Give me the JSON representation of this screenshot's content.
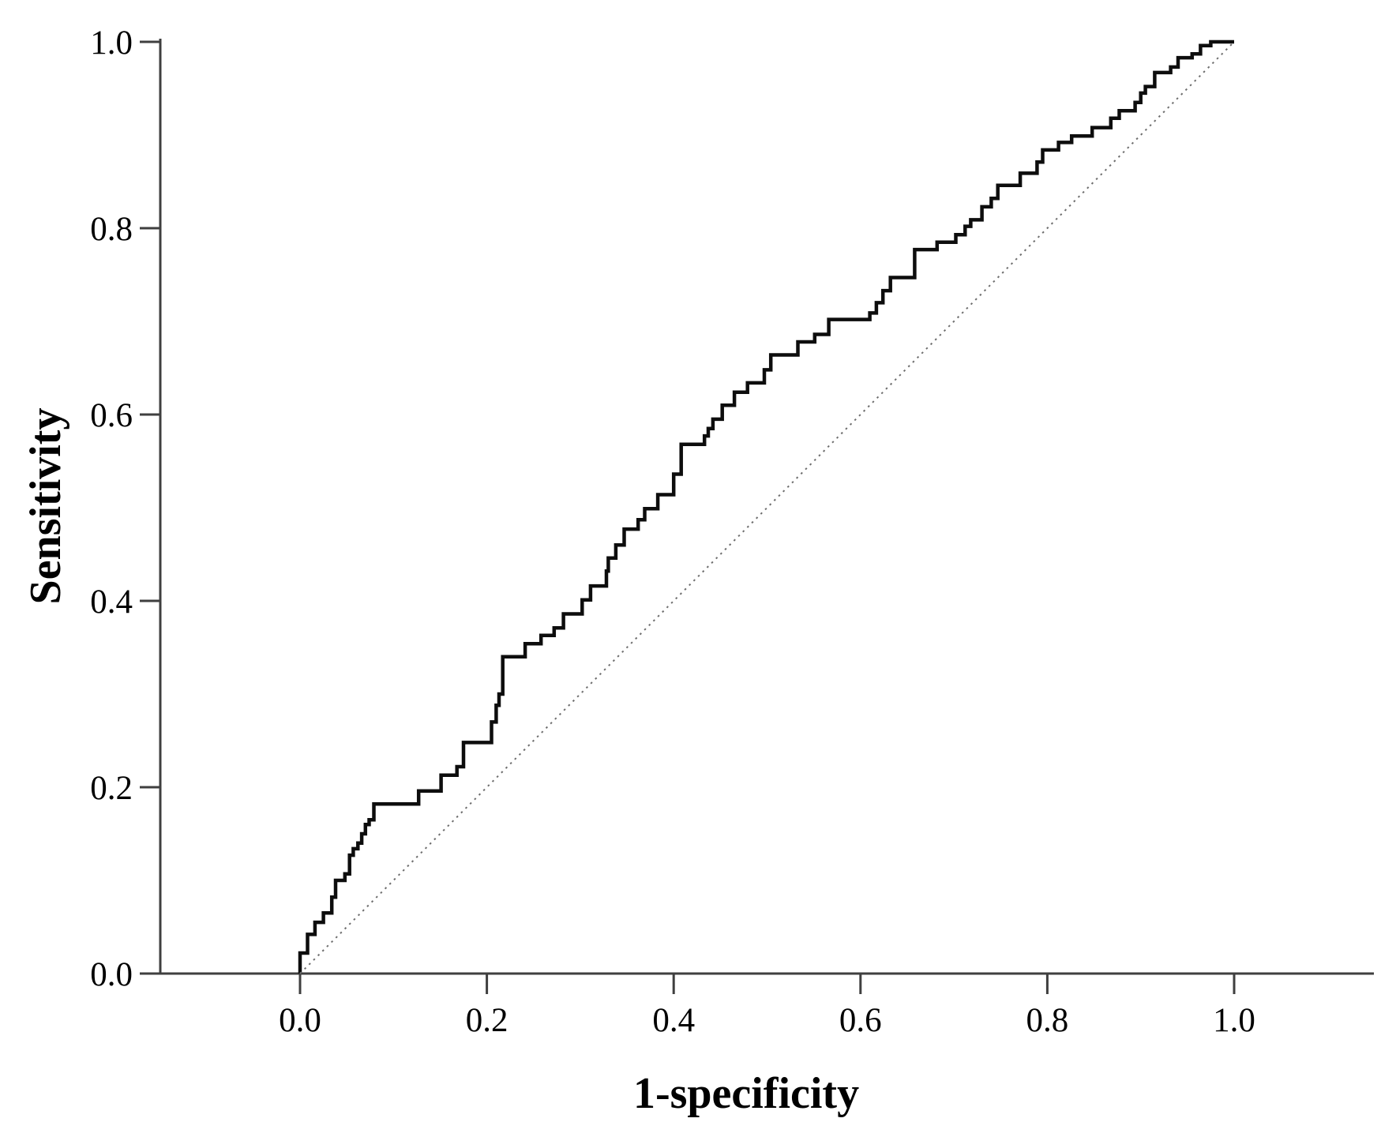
{
  "page": {
    "background": "#ffffff"
  },
  "chart_data": {
    "type": "line",
    "subtype": "roc_step_curve",
    "title": "",
    "xlabel": "1-specificity",
    "ylabel": "Sensitivity",
    "xlim": [
      0.0,
      1.0
    ],
    "ylim": [
      0.0,
      1.0
    ],
    "grid": false,
    "legend_position": "none",
    "x_ticks": [
      {
        "value": 0.0,
        "label": "0.0"
      },
      {
        "value": 0.2,
        "label": "0.2"
      },
      {
        "value": 0.4,
        "label": "0.4"
      },
      {
        "value": 0.6,
        "label": "0.6"
      },
      {
        "value": 0.8,
        "label": "0.8"
      },
      {
        "value": 1.0,
        "label": "1.0"
      }
    ],
    "y_ticks": [
      {
        "value": 0.0,
        "label": "0.0"
      },
      {
        "value": 0.2,
        "label": "0.2"
      },
      {
        "value": 0.4,
        "label": "0.4"
      },
      {
        "value": 0.6,
        "label": "0.6"
      },
      {
        "value": 0.8,
        "label": "0.8"
      },
      {
        "value": 1.0,
        "label": "1.0"
      }
    ],
    "colors": {
      "curve": "#0d0d0d",
      "reference": "#6e6e6e",
      "axis": "#3f3f3f",
      "text": "#000000"
    },
    "series": [
      {
        "name": "ROC curve",
        "style": "solid-step",
        "points": [
          [
            0.0,
            0.0
          ],
          [
            0.0,
            0.022
          ],
          [
            0.008,
            0.022
          ],
          [
            0.008,
            0.042
          ],
          [
            0.016,
            0.042
          ],
          [
            0.016,
            0.055
          ],
          [
            0.025,
            0.055
          ],
          [
            0.025,
            0.065
          ],
          [
            0.034,
            0.065
          ],
          [
            0.034,
            0.082
          ],
          [
            0.038,
            0.082
          ],
          [
            0.038,
            0.1
          ],
          [
            0.048,
            0.1
          ],
          [
            0.048,
            0.107
          ],
          [
            0.053,
            0.107
          ],
          [
            0.053,
            0.127
          ],
          [
            0.057,
            0.127
          ],
          [
            0.057,
            0.134
          ],
          [
            0.062,
            0.134
          ],
          [
            0.062,
            0.14
          ],
          [
            0.066,
            0.14
          ],
          [
            0.066,
            0.15
          ],
          [
            0.07,
            0.15
          ],
          [
            0.07,
            0.16
          ],
          [
            0.074,
            0.16
          ],
          [
            0.074,
            0.165
          ],
          [
            0.079,
            0.165
          ],
          [
            0.079,
            0.182
          ],
          [
            0.085,
            0.182
          ],
          [
            0.127,
            0.182
          ],
          [
            0.127,
            0.196
          ],
          [
            0.151,
            0.196
          ],
          [
            0.151,
            0.213
          ],
          [
            0.168,
            0.213
          ],
          [
            0.168,
            0.222
          ],
          [
            0.175,
            0.222
          ],
          [
            0.175,
            0.248
          ],
          [
            0.205,
            0.248
          ],
          [
            0.205,
            0.27
          ],
          [
            0.21,
            0.27
          ],
          [
            0.21,
            0.288
          ],
          [
            0.213,
            0.288
          ],
          [
            0.213,
            0.3
          ],
          [
            0.217,
            0.3
          ],
          [
            0.217,
            0.34
          ],
          [
            0.241,
            0.34
          ],
          [
            0.241,
            0.354
          ],
          [
            0.258,
            0.354
          ],
          [
            0.258,
            0.363
          ],
          [
            0.272,
            0.363
          ],
          [
            0.272,
            0.371
          ],
          [
            0.282,
            0.371
          ],
          [
            0.282,
            0.386
          ],
          [
            0.302,
            0.386
          ],
          [
            0.302,
            0.401
          ],
          [
            0.311,
            0.401
          ],
          [
            0.311,
            0.416
          ],
          [
            0.328,
            0.416
          ],
          [
            0.328,
            0.432
          ],
          [
            0.33,
            0.432
          ],
          [
            0.33,
            0.446
          ],
          [
            0.338,
            0.446
          ],
          [
            0.338,
            0.46
          ],
          [
            0.347,
            0.46
          ],
          [
            0.347,
            0.477
          ],
          [
            0.362,
            0.477
          ],
          [
            0.362,
            0.487
          ],
          [
            0.369,
            0.487
          ],
          [
            0.369,
            0.499
          ],
          [
            0.383,
            0.499
          ],
          [
            0.383,
            0.514
          ],
          [
            0.4,
            0.514
          ],
          [
            0.4,
            0.536
          ],
          [
            0.408,
            0.536
          ],
          [
            0.408,
            0.568
          ],
          [
            0.433,
            0.568
          ],
          [
            0.433,
            0.577
          ],
          [
            0.437,
            0.577
          ],
          [
            0.437,
            0.585
          ],
          [
            0.442,
            0.585
          ],
          [
            0.442,
            0.595
          ],
          [
            0.452,
            0.595
          ],
          [
            0.452,
            0.61
          ],
          [
            0.465,
            0.61
          ],
          [
            0.465,
            0.624
          ],
          [
            0.479,
            0.624
          ],
          [
            0.479,
            0.634
          ],
          [
            0.497,
            0.634
          ],
          [
            0.497,
            0.648
          ],
          [
            0.504,
            0.648
          ],
          [
            0.504,
            0.664
          ],
          [
            0.533,
            0.664
          ],
          [
            0.533,
            0.678
          ],
          [
            0.551,
            0.678
          ],
          [
            0.551,
            0.686
          ],
          [
            0.566,
            0.686
          ],
          [
            0.566,
            0.702
          ],
          [
            0.61,
            0.702
          ],
          [
            0.61,
            0.709
          ],
          [
            0.617,
            0.709
          ],
          [
            0.617,
            0.72
          ],
          [
            0.624,
            0.72
          ],
          [
            0.624,
            0.733
          ],
          [
            0.632,
            0.733
          ],
          [
            0.632,
            0.747
          ],
          [
            0.658,
            0.747
          ],
          [
            0.658,
            0.777
          ],
          [
            0.682,
            0.777
          ],
          [
            0.682,
            0.785
          ],
          [
            0.702,
            0.785
          ],
          [
            0.702,
            0.793
          ],
          [
            0.712,
            0.793
          ],
          [
            0.712,
            0.802
          ],
          [
            0.718,
            0.802
          ],
          [
            0.718,
            0.809
          ],
          [
            0.73,
            0.809
          ],
          [
            0.73,
            0.823
          ],
          [
            0.74,
            0.823
          ],
          [
            0.74,
            0.832
          ],
          [
            0.747,
            0.832
          ],
          [
            0.747,
            0.846
          ],
          [
            0.771,
            0.846
          ],
          [
            0.771,
            0.859
          ],
          [
            0.789,
            0.859
          ],
          [
            0.789,
            0.871
          ],
          [
            0.795,
            0.871
          ],
          [
            0.795,
            0.884
          ],
          [
            0.812,
            0.884
          ],
          [
            0.812,
            0.892
          ],
          [
            0.826,
            0.892
          ],
          [
            0.826,
            0.899
          ],
          [
            0.848,
            0.899
          ],
          [
            0.848,
            0.908
          ],
          [
            0.868,
            0.908
          ],
          [
            0.868,
            0.918
          ],
          [
            0.877,
            0.918
          ],
          [
            0.877,
            0.926
          ],
          [
            0.894,
            0.926
          ],
          [
            0.894,
            0.935
          ],
          [
            0.9,
            0.935
          ],
          [
            0.9,
            0.945
          ],
          [
            0.905,
            0.945
          ],
          [
            0.905,
            0.952
          ],
          [
            0.915,
            0.952
          ],
          [
            0.915,
            0.967
          ],
          [
            0.932,
            0.967
          ],
          [
            0.932,
            0.973
          ],
          [
            0.94,
            0.973
          ],
          [
            0.94,
            0.983
          ],
          [
            0.955,
            0.983
          ],
          [
            0.955,
            0.987
          ],
          [
            0.964,
            0.987
          ],
          [
            0.964,
            0.996
          ],
          [
            0.975,
            0.996
          ],
          [
            0.975,
            1.0
          ],
          [
            1.0,
            1.0
          ]
        ]
      },
      {
        "name": "Reference diagonal",
        "style": "dotted",
        "points": [
          [
            0.0,
            0.0
          ],
          [
            1.0,
            1.0
          ]
        ]
      }
    ]
  }
}
